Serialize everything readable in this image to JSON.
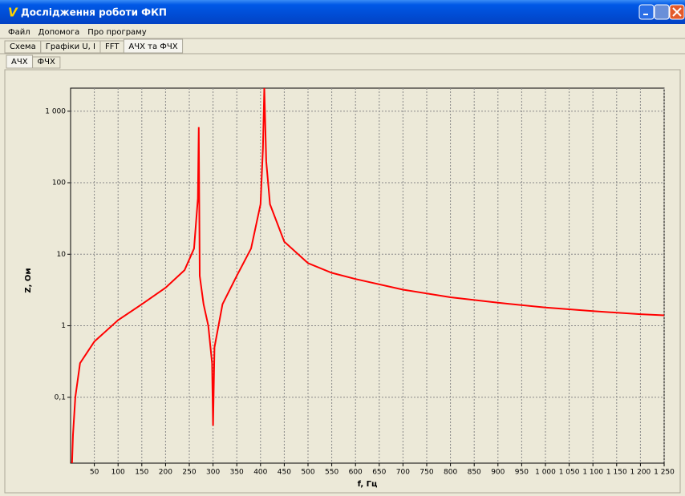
{
  "window": {
    "title": "Дослідження роботи ФКП"
  },
  "menu": [
    "Файл",
    "Допомога",
    "Про програму"
  ],
  "tabs": [
    "Схема",
    "Графіки U, I",
    "FFT",
    "АЧХ та ФЧХ"
  ],
  "subtabs": [
    "АЧХ",
    "ФЧХ"
  ],
  "chart_data": {
    "type": "line",
    "xlabel": "f, Гц",
    "ylabel": "Z, Ом",
    "color": "#ff0000",
    "log_y": true,
    "grid": true,
    "x": [
      3,
      5,
      10,
      20,
      50,
      100,
      150,
      200,
      240,
      260,
      268,
      270,
      272,
      280,
      290,
      298,
      300,
      303,
      320,
      350,
      380,
      400,
      405,
      408,
      412,
      420,
      450,
      500,
      550,
      600,
      700,
      800,
      900,
      1000,
      1100,
      1200,
      1250
    ],
    "values": [
      0.012,
      0.03,
      0.1,
      0.3,
      0.6,
      1.2,
      2,
      3.4,
      6,
      12,
      60,
      600,
      5,
      2,
      1,
      0.3,
      0.04,
      0.5,
      2,
      5,
      12,
      50,
      300,
      2100,
      200,
      50,
      15,
      7.5,
      5.5,
      4.5,
      3.2,
      2.5,
      2.1,
      1.8,
      1.6,
      1.45,
      1.4
    ],
    "xlim": [
      0,
      1250
    ],
    "ylim": [
      0.012,
      2100
    ],
    "xticks": [
      50,
      100,
      150,
      200,
      250,
      300,
      350,
      400,
      450,
      500,
      550,
      600,
      650,
      700,
      750,
      800,
      850,
      900,
      950,
      {
        "value": 1000,
        "label": "1 000"
      },
      {
        "value": 1050,
        "label": "1 050"
      },
      {
        "value": 1100,
        "label": "1 100"
      },
      {
        "value": 1150,
        "label": "1 150"
      },
      {
        "value": 1200,
        "label": "1 200"
      },
      {
        "value": 1250,
        "label": "1 250"
      }
    ],
    "yticks": [
      {
        "value": 0.1,
        "label": "0,1"
      },
      1,
      10,
      100,
      {
        "value": 1000,
        "label": "1 000"
      }
    ]
  }
}
